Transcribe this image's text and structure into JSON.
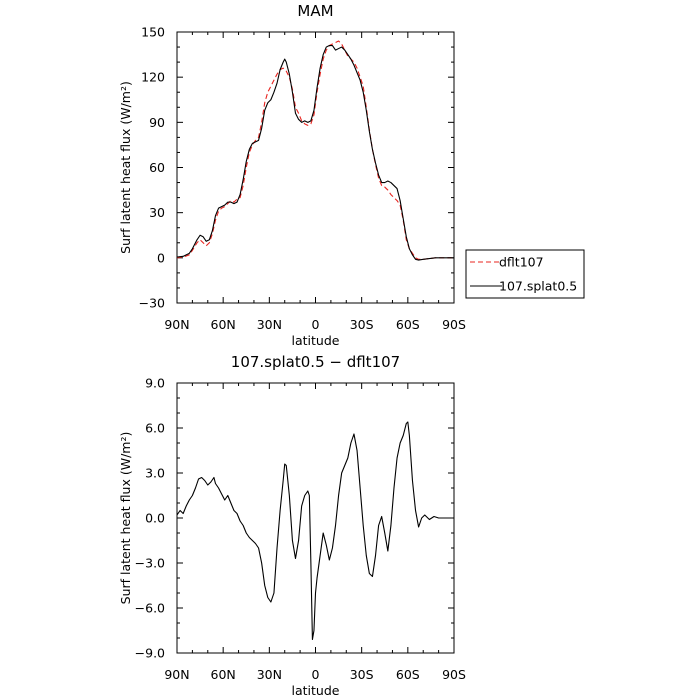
{
  "chart_data": [
    {
      "type": "line",
      "title": "MAM",
      "xlabel": "latitude",
      "ylabel": "Surf latent heat flux (W/m²)",
      "xlim": [
        90,
        -90
      ],
      "ylim": [
        -30,
        150
      ],
      "x_ticks": [
        90,
        60,
        30,
        0,
        -30,
        -60,
        -90
      ],
      "x_tick_labels": [
        "90N",
        "60N",
        "30N",
        "0",
        "30S",
        "60S",
        "90S"
      ],
      "y_ticks": [
        -30,
        0,
        30,
        60,
        90,
        120,
        150
      ],
      "y_tick_labels": [
        "−30",
        "0",
        "30",
        "60",
        "90",
        "120",
        "150"
      ],
      "legend": {
        "placement": "outside-right"
      },
      "series": [
        {
          "name": "dflt107",
          "color": "#e8241f",
          "style": "dashed",
          "points": [
            [
              90,
              0
            ],
            [
              86,
              0.5
            ],
            [
              82,
              2
            ],
            [
              80,
              5
            ],
            [
              77,
              10
            ],
            [
              75,
              12
            ],
            [
              73,
              10
            ],
            [
              71,
              8
            ],
            [
              69,
              10
            ],
            [
              67,
              16
            ],
            [
              65,
              25
            ],
            [
              63,
              31
            ],
            [
              61,
              33
            ],
            [
              59,
              34
            ],
            [
              57,
              36
            ],
            [
              55,
              38
            ],
            [
              53,
              37
            ],
            [
              51,
              39
            ],
            [
              49,
              40
            ],
            [
              47,
              48
            ],
            [
              45,
              60
            ],
            [
              43,
              70
            ],
            [
              41,
              75
            ],
            [
              39,
              78
            ],
            [
              37,
              80
            ],
            [
              35,
              90
            ],
            [
              33,
              103
            ],
            [
              31,
              110
            ],
            [
              29,
              114
            ],
            [
              27,
              118
            ],
            [
              25,
              122
            ],
            [
              23,
              125
            ],
            [
              21,
              126
            ],
            [
              19,
              124
            ],
            [
              17,
              120
            ],
            [
              15,
              112
            ],
            [
              13,
              100
            ],
            [
              11,
              96
            ],
            [
              9,
              91
            ],
            [
              7,
              89
            ],
            [
              5,
              88
            ],
            [
              3,
              89
            ],
            [
              1,
              95
            ],
            [
              -1,
              110
            ],
            [
              -3,
              122
            ],
            [
              -5,
              132
            ],
            [
              -7,
              138
            ],
            [
              -9,
              141
            ],
            [
              -11,
              142
            ],
            [
              -13,
              143
            ],
            [
              -15,
              144
            ],
            [
              -17,
              142
            ],
            [
              -19,
              138
            ],
            [
              -21,
              134
            ],
            [
              -23,
              132
            ],
            [
              -25,
              130
            ],
            [
              -27,
              126
            ],
            [
              -29,
              120
            ],
            [
              -31,
              114
            ],
            [
              -33,
              100
            ],
            [
              -35,
              85
            ],
            [
              -37,
              72
            ],
            [
              -39,
              62
            ],
            [
              -41,
              53
            ],
            [
              -43,
              48
            ],
            [
              -45,
              47
            ],
            [
              -47,
              45
            ],
            [
              -49,
              42
            ],
            [
              -51,
              40
            ],
            [
              -53,
              38
            ],
            [
              -55,
              35
            ],
            [
              -57,
              25
            ],
            [
              -59,
              12
            ],
            [
              -61,
              6
            ],
            [
              -63,
              3
            ],
            [
              -65,
              0
            ],
            [
              -67,
              -1
            ],
            [
              -70,
              -1
            ],
            [
              -74,
              -0.5
            ],
            [
              -78,
              0
            ],
            [
              -84,
              0
            ],
            [
              -90,
              0
            ]
          ]
        },
        {
          "name": "107.splat0.5",
          "color": "#000000",
          "style": "solid",
          "points": [
            [
              90,
              0.5
            ],
            [
              86,
              1
            ],
            [
              82,
              3
            ],
            [
              80,
              6
            ],
            [
              77,
              12
            ],
            [
              75,
              15
            ],
            [
              73,
              14
            ],
            [
              71,
              11
            ],
            [
              69,
              12
            ],
            [
              67,
              18
            ],
            [
              65,
              28
            ],
            [
              63,
              33
            ],
            [
              61,
              34
            ],
            [
              59,
              35
            ],
            [
              57,
              37
            ],
            [
              55,
              37
            ],
            [
              53,
              36
            ],
            [
              51,
              37
            ],
            [
              49,
              42
            ],
            [
              47,
              52
            ],
            [
              45,
              64
            ],
            [
              43,
              72
            ],
            [
              41,
              76
            ],
            [
              39,
              77
            ],
            [
              37,
              78
            ],
            [
              35,
              86
            ],
            [
              33,
              98
            ],
            [
              31,
              103
            ],
            [
              29,
              105
            ],
            [
              27,
              110
            ],
            [
              25,
              116
            ],
            [
              23,
              125
            ],
            [
              21,
              130
            ],
            [
              20,
              132
            ],
            [
              19,
              130
            ],
            [
              17,
              122
            ],
            [
              15,
              110
            ],
            [
              13,
              96
            ],
            [
              11,
              92
            ],
            [
              9,
              90
            ],
            [
              7,
              91
            ],
            [
              5,
              90
            ],
            [
              3,
              91
            ],
            [
              1,
              98
            ],
            [
              -1,
              113
            ],
            [
              -3,
              126
            ],
            [
              -5,
              135
            ],
            [
              -7,
              140
            ],
            [
              -9,
              141
            ],
            [
              -11,
              141
            ],
            [
              -13,
              138
            ],
            [
              -15,
              139
            ],
            [
              -17,
              140
            ],
            [
              -19,
              138
            ],
            [
              -21,
              135
            ],
            [
              -23,
              132
            ],
            [
              -25,
              128
            ],
            [
              -27,
              123
            ],
            [
              -29,
              118
            ],
            [
              -31,
              110
            ],
            [
              -33,
              98
            ],
            [
              -35,
              84
            ],
            [
              -37,
              72
            ],
            [
              -39,
              63
            ],
            [
              -41,
              55
            ],
            [
              -43,
              50
            ],
            [
              -45,
              50
            ],
            [
              -47,
              51
            ],
            [
              -49,
              50
            ],
            [
              -51,
              48
            ],
            [
              -53,
              46
            ],
            [
              -55,
              38
            ],
            [
              -57,
              26
            ],
            [
              -59,
              14
            ],
            [
              -61,
              6
            ],
            [
              -63,
              2
            ],
            [
              -65,
              -1
            ],
            [
              -67,
              -1.5
            ],
            [
              -70,
              -1
            ],
            [
              -74,
              -0.5
            ],
            [
              -78,
              0
            ],
            [
              -84,
              0
            ],
            [
              -90,
              0
            ]
          ]
        }
      ]
    },
    {
      "type": "line",
      "title": "107.splat0.5 − dflt107",
      "xlabel": "latitude",
      "ylabel": "Surf latent heat flux (W/m²)",
      "xlim": [
        90,
        -90
      ],
      "ylim": [
        -9,
        9
      ],
      "x_ticks": [
        90,
        60,
        30,
        0,
        -30,
        -60,
        -90
      ],
      "x_tick_labels": [
        "90N",
        "60N",
        "30N",
        "0",
        "30S",
        "60S",
        "90S"
      ],
      "y_ticks": [
        -9,
        -6,
        -3,
        0,
        3,
        6,
        9
      ],
      "y_tick_labels": [
        "−9.0",
        "−6.0",
        "−3.0",
        "0.0",
        "3.0",
        "6.0",
        "9.0"
      ],
      "series": [
        {
          "color": "#000000",
          "style": "solid",
          "points": [
            [
              90,
              0.2
            ],
            [
              88,
              0.5
            ],
            [
              86,
              0.3
            ],
            [
              84,
              0.8
            ],
            [
              82,
              1.2
            ],
            [
              80,
              1.5
            ],
            [
              78,
              2.0
            ],
            [
              76,
              2.6
            ],
            [
              74,
              2.7
            ],
            [
              72,
              2.5
            ],
            [
              70,
              2.2
            ],
            [
              68,
              2.4
            ],
            [
              66,
              2.7
            ],
            [
              65,
              2.3
            ],
            [
              63,
              2.0
            ],
            [
              61,
              1.6
            ],
            [
              59,
              1.2
            ],
            [
              57,
              1.5
            ],
            [
              55,
              1.0
            ],
            [
              53,
              0.5
            ],
            [
              51,
              0.3
            ],
            [
              49,
              -0.2
            ],
            [
              47,
              -0.5
            ],
            [
              45,
              -1.0
            ],
            [
              43,
              -1.3
            ],
            [
              41,
              -1.5
            ],
            [
              39,
              -1.7
            ],
            [
              37,
              -2.0
            ],
            [
              35,
              -3.0
            ],
            [
              33,
              -4.5
            ],
            [
              31,
              -5.3
            ],
            [
              29,
              -5.6
            ],
            [
              27,
              -5.0
            ],
            [
              25,
              -2.0
            ],
            [
              23,
              0.5
            ],
            [
              21,
              2.5
            ],
            [
              20,
              3.6
            ],
            [
              19,
              3.5
            ],
            [
              17,
              1.5
            ],
            [
              15,
              -1.5
            ],
            [
              13,
              -2.7
            ],
            [
              11,
              -1.5
            ],
            [
              9,
              0.8
            ],
            [
              7,
              1.5
            ],
            [
              5,
              1.8
            ],
            [
              4,
              1.5
            ],
            [
              3,
              -3.0
            ],
            [
              2,
              -8.1
            ],
            [
              1,
              -7.5
            ],
            [
              0,
              -5.0
            ],
            [
              -1,
              -4.0
            ],
            [
              -3,
              -2.5
            ],
            [
              -5,
              -1.0
            ],
            [
              -7,
              -1.8
            ],
            [
              -9,
              -2.8
            ],
            [
              -11,
              -2.0
            ],
            [
              -13,
              -0.5
            ],
            [
              -15,
              1.5
            ],
            [
              -17,
              3.0
            ],
            [
              -19,
              3.5
            ],
            [
              -21,
              4.0
            ],
            [
              -23,
              5.0
            ],
            [
              -25,
              5.6
            ],
            [
              -27,
              4.5
            ],
            [
              -29,
              2.0
            ],
            [
              -31,
              -0.5
            ],
            [
              -33,
              -2.5
            ],
            [
              -35,
              -3.7
            ],
            [
              -37,
              -3.9
            ],
            [
              -39,
              -2.5
            ],
            [
              -41,
              -0.5
            ],
            [
              -43,
              0.1
            ],
            [
              -45,
              -1.0
            ],
            [
              -47,
              -2.2
            ],
            [
              -49,
              -0.5
            ],
            [
              -51,
              2.0
            ],
            [
              -53,
              4.0
            ],
            [
              -55,
              5.0
            ],
            [
              -57,
              5.5
            ],
            [
              -59,
              6.3
            ],
            [
              -60,
              6.4
            ],
            [
              -61,
              5.5
            ],
            [
              -63,
              2.5
            ],
            [
              -65,
              0.5
            ],
            [
              -67,
              -0.6
            ],
            [
              -69,
              0.0
            ],
            [
              -71,
              0.2
            ],
            [
              -74,
              -0.1
            ],
            [
              -77,
              0.1
            ],
            [
              -80,
              0.0
            ],
            [
              -84,
              0.0
            ],
            [
              -90,
              0.0
            ]
          ]
        }
      ]
    }
  ]
}
